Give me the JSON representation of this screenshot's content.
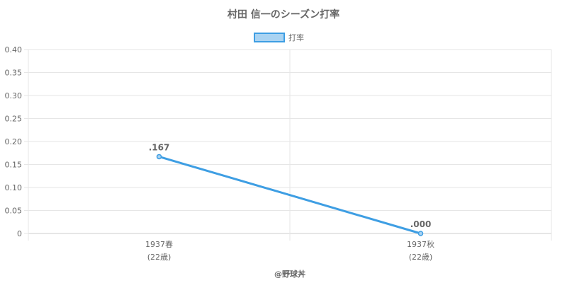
{
  "credit": "@野球丼",
  "chart_data": {
    "type": "line",
    "title": "村田 信一のシーズン打率",
    "categories": [
      "1937春",
      "1937秋"
    ],
    "category_sublabels": [
      "(22歳)",
      "(22歳)"
    ],
    "series": [
      {
        "name": "打率",
        "values": [
          0.167,
          0.0
        ],
        "data_labels": [
          ".167",
          ".000"
        ],
        "color": "#3e9ee3",
        "fill_color": "#a9d3f2"
      }
    ],
    "ylim": [
      0,
      0.4
    ],
    "yticks": [
      "0",
      "0.05",
      "0.10",
      "0.15",
      "0.20",
      "0.25",
      "0.30",
      "0.35",
      "0.40"
    ],
    "ytick_values": [
      0,
      0.05,
      0.1,
      0.15,
      0.2,
      0.25,
      0.3,
      0.35,
      0.4
    ],
    "grid": true,
    "legend": "top-center"
  }
}
